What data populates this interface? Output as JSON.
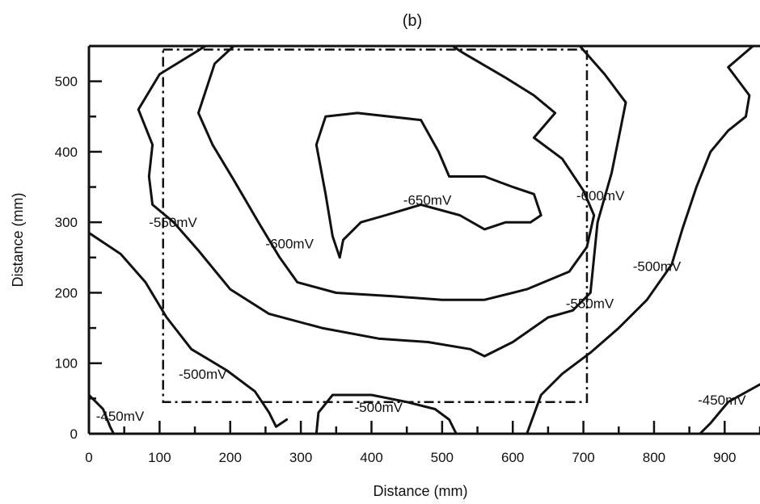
{
  "chart_data": {
    "type": "contour",
    "panel_label": "(b)",
    "xlabel": "Distance (mm)",
    "ylabel": "Distance (mm)",
    "xlim": [
      0,
      950
    ],
    "ylim": [
      0,
      550
    ],
    "x_ticks": [
      "0",
      "100",
      "200",
      "300",
      "400",
      "500",
      "600",
      "700",
      "800",
      "900"
    ],
    "y_ticks": [
      "0",
      "100",
      "200",
      "300",
      "400",
      "500"
    ],
    "grid": false,
    "region_rectangle": {
      "x": [
        105,
        705
      ],
      "y": [
        45,
        545
      ],
      "style": "dash-dot"
    },
    "contours": [
      {
        "level": "-650mV",
        "labels": [
          {
            "text": "-650mV",
            "x": 445,
            "y": 332
          }
        ],
        "points": [
          [
            355,
            250
          ],
          [
            345,
            280
          ],
          [
            335,
            340
          ],
          [
            322,
            410
          ],
          [
            335,
            450
          ],
          [
            380,
            455
          ],
          [
            470,
            445
          ],
          [
            495,
            400
          ],
          [
            510,
            365
          ],
          [
            560,
            365
          ],
          [
            600,
            350
          ],
          [
            630,
            340
          ],
          [
            640,
            310
          ],
          [
            625,
            300
          ],
          [
            590,
            300
          ],
          [
            560,
            290
          ],
          [
            525,
            310
          ],
          [
            470,
            325
          ],
          [
            420,
            310
          ],
          [
            385,
            300
          ],
          [
            360,
            275
          ],
          [
            355,
            250
          ]
        ]
      },
      {
        "level": "-600mV",
        "labels": [
          {
            "text": "-600mV",
            "x": 250,
            "y": 270
          },
          {
            "text": "-600mV",
            "x": 690,
            "y": 338
          }
        ],
        "points": [
          [
            205,
            550
          ],
          [
            178,
            525
          ],
          [
            155,
            455
          ],
          [
            175,
            410
          ],
          [
            205,
            360
          ],
          [
            240,
            300
          ],
          [
            270,
            250
          ],
          [
            295,
            215
          ],
          [
            350,
            200
          ],
          [
            430,
            195
          ],
          [
            500,
            190
          ],
          [
            560,
            190
          ],
          [
            620,
            205
          ],
          [
            680,
            230
          ],
          [
            705,
            265
          ],
          [
            715,
            310
          ],
          [
            700,
            345
          ],
          [
            670,
            390
          ],
          [
            630,
            420
          ],
          [
            660,
            455
          ],
          [
            630,
            480
          ],
          [
            590,
            505
          ],
          [
            530,
            540
          ],
          [
            515,
            550
          ]
        ]
      },
      {
        "level": "-550mV",
        "labels": [
          {
            "text": "-550mV",
            "x": 85,
            "y": 300
          },
          {
            "text": "-550mV",
            "x": 675,
            "y": 185
          }
        ],
        "points": [
          [
            165,
            550
          ],
          [
            100,
            510
          ],
          [
            70,
            460
          ],
          [
            90,
            410
          ],
          [
            85,
            365
          ],
          [
            90,
            325
          ],
          [
            120,
            300
          ],
          [
            155,
            260
          ],
          [
            200,
            205
          ],
          [
            255,
            170
          ],
          [
            330,
            150
          ],
          [
            410,
            135
          ],
          [
            480,
            130
          ],
          [
            540,
            120
          ],
          [
            560,
            110
          ],
          [
            600,
            130
          ],
          [
            650,
            165
          ],
          [
            685,
            175
          ],
          [
            710,
            200
          ],
          [
            715,
            250
          ],
          [
            720,
            300
          ],
          [
            740,
            370
          ],
          [
            750,
            420
          ],
          [
            760,
            470
          ],
          [
            730,
            510
          ],
          [
            695,
            550
          ]
        ]
      },
      {
        "level": "-500mV",
        "labels": [
          {
            "text": "-500mV",
            "x": 127,
            "y": 85
          },
          {
            "text": "-500mV",
            "x": 376,
            "y": 38
          },
          {
            "text": "-500mV",
            "x": 770,
            "y": 238
          }
        ],
        "points": [
          [
            0,
            285
          ],
          [
            45,
            255
          ],
          [
            80,
            215
          ],
          [
            110,
            165
          ],
          [
            145,
            120
          ],
          [
            195,
            90
          ],
          [
            235,
            60
          ],
          [
            255,
            30
          ],
          [
            265,
            10
          ],
          [
            280,
            20
          ]
        ]
      },
      {
        "level": "-500mV",
        "points": [
          [
            322,
            0
          ],
          [
            325,
            30
          ],
          [
            345,
            55
          ],
          [
            400,
            55
          ],
          [
            450,
            45
          ],
          [
            490,
            35
          ],
          [
            510,
            20
          ],
          [
            520,
            0
          ]
        ]
      },
      {
        "level": "-500mV",
        "points": [
          [
            620,
            0
          ],
          [
            640,
            55
          ],
          [
            670,
            85
          ],
          [
            710,
            115
          ],
          [
            750,
            150
          ],
          [
            790,
            190
          ],
          [
            825,
            240
          ],
          [
            840,
            290
          ],
          [
            860,
            350
          ],
          [
            880,
            400
          ],
          [
            905,
            430
          ],
          [
            930,
            450
          ],
          [
            935,
            480
          ],
          [
            920,
            500
          ],
          [
            905,
            520
          ],
          [
            940,
            550
          ]
        ]
      },
      {
        "level": "-450mV",
        "labels": [
          {
            "text": "-450mV",
            "x": 10,
            "y": 25
          },
          {
            "text": "-450mV",
            "x": 862,
            "y": 48
          }
        ],
        "points": [
          [
            0,
            55
          ],
          [
            20,
            35
          ],
          [
            30,
            10
          ],
          [
            35,
            0
          ]
        ]
      },
      {
        "level": "-450mV",
        "points": [
          [
            865,
            0
          ],
          [
            880,
            15
          ],
          [
            905,
            45
          ],
          [
            950,
            70
          ]
        ]
      }
    ]
  }
}
